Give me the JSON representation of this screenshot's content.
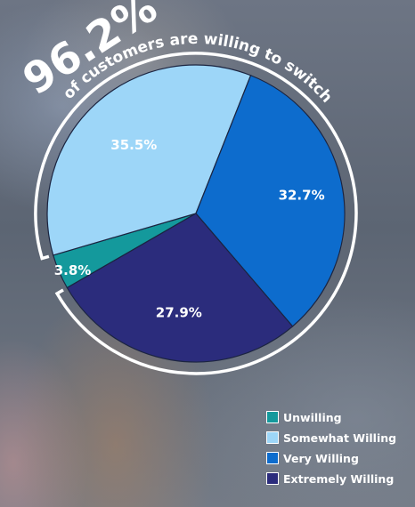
{
  "headline": {
    "big_value": "96.2%",
    "caption": "of customers are willing to switch"
  },
  "chart_data": {
    "type": "pie",
    "categories": [
      "Unwilling",
      "Somewhat Willing",
      "Very Willing",
      "Extremely Willing"
    ],
    "values": [
      3.8,
      35.5,
      32.7,
      27.9
    ],
    "labels": [
      "3.8%",
      "35.5%",
      "32.7%",
      "27.9%"
    ],
    "colors": [
      "#14999c",
      "#9dd6f8",
      "#0d6ccd",
      "#2b2c7c"
    ],
    "legend": "bottom-right"
  }
}
